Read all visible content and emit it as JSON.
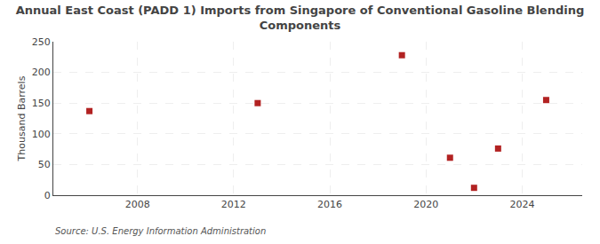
{
  "chart_data": {
    "type": "scatter",
    "title": "Annual East Coast (PADD 1) Imports from Singapore of Conventional Gasoline Blending\nComponents",
    "ylabel": "Thousand Barrels",
    "annotations": [
      "Source: U.S. Energy Information Administration"
    ],
    "x": [
      2006,
      2013,
      2019,
      2021,
      2022,
      2023,
      2025
    ],
    "values": [
      137,
      150,
      228,
      61,
      12,
      76,
      155
    ],
    "color": "#b22222",
    "marker": "square",
    "xlim": [
      2004.5,
      2026.5
    ],
    "ylim": [
      0,
      250
    ],
    "xticks": [
      2008,
      2012,
      2016,
      2020,
      2024
    ],
    "yticks": [
      0,
      50,
      100,
      150,
      200,
      250
    ],
    "grid": true
  }
}
